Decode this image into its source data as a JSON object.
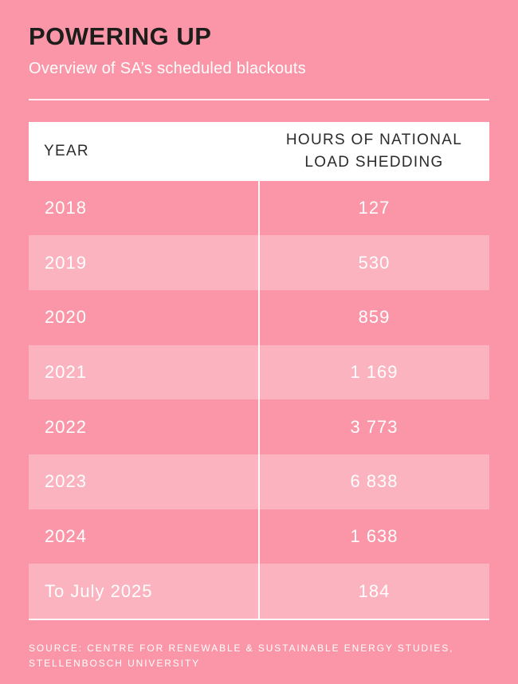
{
  "page": {
    "title": "POWERING UP",
    "subtitle": "Overview of SA’s scheduled blackouts",
    "source": "SOURCE: CENTRE FOR RENEWABLE & SUSTAINABLE ENERGY STUDIES, STELLENBOSCH UNIVERSITY"
  },
  "table": {
    "columns": {
      "year": "YEAR",
      "hours": "HOURS OF NATIONAL LOAD SHEDDING"
    },
    "rows": [
      {
        "year": "2018",
        "hours": "127"
      },
      {
        "year": "2019",
        "hours": "530"
      },
      {
        "year": "2020",
        "hours": "859"
      },
      {
        "year": "2021",
        "hours": "1 169"
      },
      {
        "year": "2022",
        "hours": "3 773"
      },
      {
        "year": "2023",
        "hours": "6 838"
      },
      {
        "year": "2024",
        "hours": "1 638"
      },
      {
        "year": "To July 2025",
        "hours": "184"
      }
    ]
  },
  "colors": {
    "background": "#fa96a7",
    "row_highlight": "#fbb1bd",
    "panel": "#ffffff",
    "title_text": "#1d1d1b",
    "header_text": "#2b2b2b",
    "body_text": "#ffffff"
  },
  "chart_data": {
    "type": "table",
    "title": "POWERING UP",
    "subtitle": "Overview of SA’s scheduled blackouts",
    "columns": [
      "YEAR",
      "HOURS OF NATIONAL LOAD SHEDDING"
    ],
    "categories": [
      "2018",
      "2019",
      "2020",
      "2021",
      "2022",
      "2023",
      "2024",
      "To July 2025"
    ],
    "values": [
      127,
      530,
      859,
      1169,
      3773,
      6838,
      1638,
      184
    ],
    "source": "SOURCE: CENTRE FOR RENEWABLE & SUSTAINABLE ENERGY STUDIES, STELLENBOSCH UNIVERSITY"
  }
}
